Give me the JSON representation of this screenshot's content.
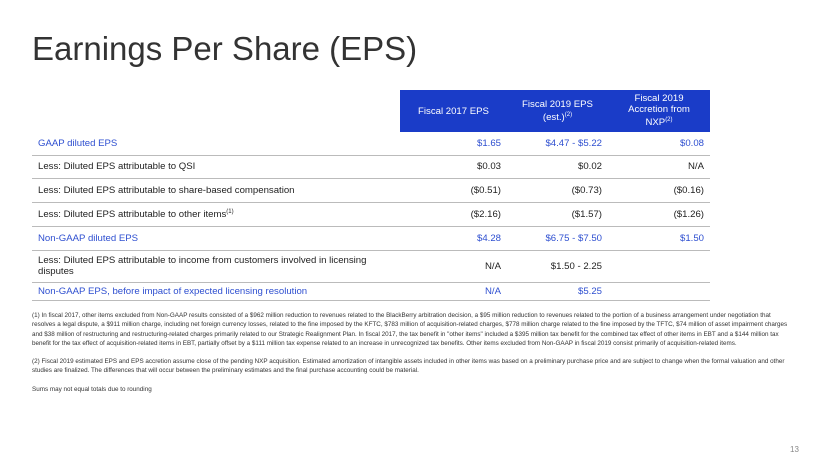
{
  "title": "Earnings Per Share (EPS)",
  "table": {
    "header_color": "#1a3cc8",
    "columns": [
      {
        "text": "Fiscal 2017 EPS"
      },
      {
        "text": "Fiscal 2019 EPS (est.)",
        "sup": "(2)"
      },
      {
        "text": "Fiscal 2019 Accretion from NXP",
        "sup": "(2)"
      }
    ],
    "rows": [
      {
        "label": "GAAP diluted EPS",
        "values": [
          "$1.65",
          "$4.47 - $5.22",
          "$0.08"
        ],
        "color": "#2e4fd0"
      },
      {
        "label": "Less: Diluted EPS attributable to QSI",
        "values": [
          "$0.03",
          "$0.02",
          "N/A"
        ]
      },
      {
        "label": "Less: Diluted EPS attributable to share-based compensation",
        "values": [
          "($0.51)",
          "($0.73)",
          "($0.16)"
        ]
      },
      {
        "label": "Less: Diluted EPS attributable to other items",
        "sup": "(1)",
        "values": [
          "($2.16)",
          "($1.57)",
          "($1.26)"
        ]
      },
      {
        "label": "Non-GAAP diluted EPS",
        "values": [
          "$4.28",
          "$6.75 - $7.50",
          "$1.50"
        ],
        "color": "#2e4fd0"
      },
      {
        "label": "Less: Diluted EPS attributable to income from customers involved in licensing disputes",
        "values": [
          "N/A",
          "$1.50 - 2.25"
        ]
      },
      {
        "label": "Non-GAAP EPS, before impact of expected licensing resolution",
        "values": [
          "N/A",
          "$5.25"
        ],
        "color": "#2e4fd0"
      }
    ]
  },
  "footnotes": [
    "(1) In fiscal 2017, other items excluded from Non-GAAP results consisted of a $962 million reduction to revenues related to the BlackBerry arbitration decision, a $95 million reduction to revenues related to the portion of a business arrangement under negotiation that resolves a legal dispute, a $911 million charge, including net foreign currency losses, related to the fine imposed by the KFTC, $783 million of acquisition-related charges, $778 million charge related to the fine imposed by the TFTC, $74 million of asset impairment charges and $38 million of restructuring and restructuring-related charges primarily related to our Strategic Realignment Plan. In fiscal 2017, the tax benefit in \"other items\" included a $395 million tax benefit for the combined tax effect of other items in EBT and a $144 million tax benefit for the tax effect of acquisition-related items in EBT, partially offset by a $111 million tax expense related to an increase in unrecognized tax benefits. Other items excluded from Non-GAAP in fiscal 2019 consist primarily of acquisition-related items.",
    "(2) Fiscal 2019 estimated EPS and EPS accretion assume close of the pending NXP acquisition. Estimated amortization of intangible assets included in other items was based on a preliminary purchase price and are subject to change when the formal valuation and other studies are finalized. The differences that will occur between the preliminary estimates and the final purchase accounting could be material.",
    "Sums may not equal totals due to rounding"
  ],
  "page_number": "13"
}
